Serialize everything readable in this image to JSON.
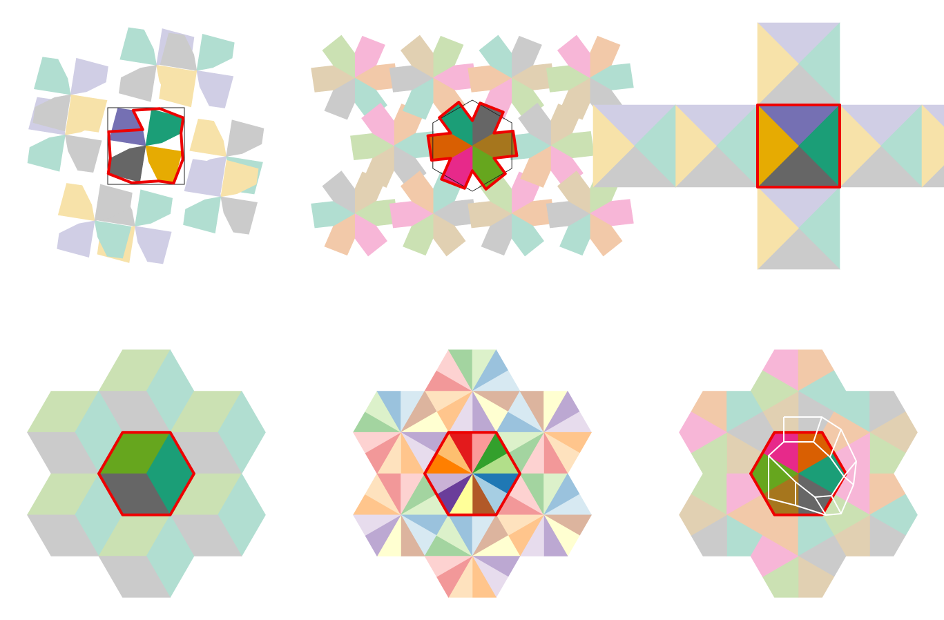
{
  "palette": {
    "teal": "#1b9e77",
    "orange": "#d95f02",
    "purple": "#7570b3",
    "magenta": "#e7298a",
    "green": "#66a61e",
    "gold": "#e6ab02",
    "brown": "#a6761d",
    "gray": "#666666",
    "outline": "#ee0000",
    "paired": [
      "#e31a1c",
      "#fb9a99",
      "#33a02c",
      "#b2df8a",
      "#1f78b4",
      "#a6cee3",
      "#b15928",
      "#ffff99",
      "#6a3d9a",
      "#cab2d6",
      "#ff7f00",
      "#fdbf6f"
    ]
  },
  "panels": [
    {
      "id": "pentagon-tiling",
      "tile_colors": [
        "teal",
        "purple",
        "gold",
        "gray"
      ]
    },
    {
      "id": "hexagonal-rosette-tiling",
      "tile_colors": [
        "gray",
        "brown",
        "green",
        "magenta",
        "orange",
        "teal"
      ]
    },
    {
      "id": "square-triangle-tiling",
      "tile_colors": [
        "purple",
        "teal",
        "gray",
        "gold"
      ]
    },
    {
      "id": "rhombus-cube-tiling",
      "tile_colors": [
        "green",
        "teal",
        "gray"
      ]
    },
    {
      "id": "kite-triangle-hexagon-tiling",
      "tile_colors": [
        "paired"
      ]
    },
    {
      "id": "kite-hexagon-tiling",
      "tile_colors": [
        "magenta",
        "orange",
        "teal",
        "gray",
        "brown",
        "green"
      ]
    }
  ]
}
